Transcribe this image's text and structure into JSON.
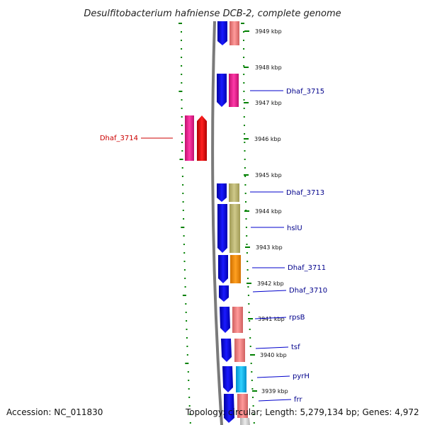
{
  "title": "Desulfitobacterium hafniense DCB-2, complete genome",
  "footer": {
    "accession": "Accession: NC_011830",
    "topology": "Topology: circular; Length: 5,279,134 bp; Genes: 4,972"
  },
  "colors": {
    "forward_gene": "#1010e0",
    "label_plus": "#00008b",
    "label_minus": "#cc0000",
    "backbone": "#7a7a7a",
    "tick": "#008000"
  },
  "kbp_ticks": [
    "3949 kbp",
    "3948 kbp",
    "3947 kbp",
    "3946 kbp",
    "3945 kbp",
    "3944 kbp",
    "3943 kbp",
    "3942 kbp",
    "3941 kbp",
    "3940 kbp",
    "3939 kbp"
  ],
  "genes": [
    {
      "name": "Dhaf_3715",
      "strand": "+",
      "cog_color": "#ff1493"
    },
    {
      "name": "Dhaf_3714",
      "strand": "-",
      "cog_color": "#ff1493"
    },
    {
      "name": "Dhaf_3713",
      "strand": "+",
      "cog_color": "#bdb76b"
    },
    {
      "name": "hslU",
      "strand": "+",
      "cog_color": "#bdb76b"
    },
    {
      "name": "Dhaf_3711",
      "strand": "+",
      "cog_color": "#ff8c00"
    },
    {
      "name": "Dhaf_3710",
      "strand": "+",
      "cog_color": ""
    },
    {
      "name": "rpsB",
      "strand": "+",
      "cog_color": "#f08080"
    },
    {
      "name": "tsf",
      "strand": "+",
      "cog_color": "#f08080"
    },
    {
      "name": "pyrH",
      "strand": "+",
      "cog_color": "#00bfff"
    },
    {
      "name": "frr",
      "strand": "+",
      "cog_color": "#f08080"
    }
  ]
}
